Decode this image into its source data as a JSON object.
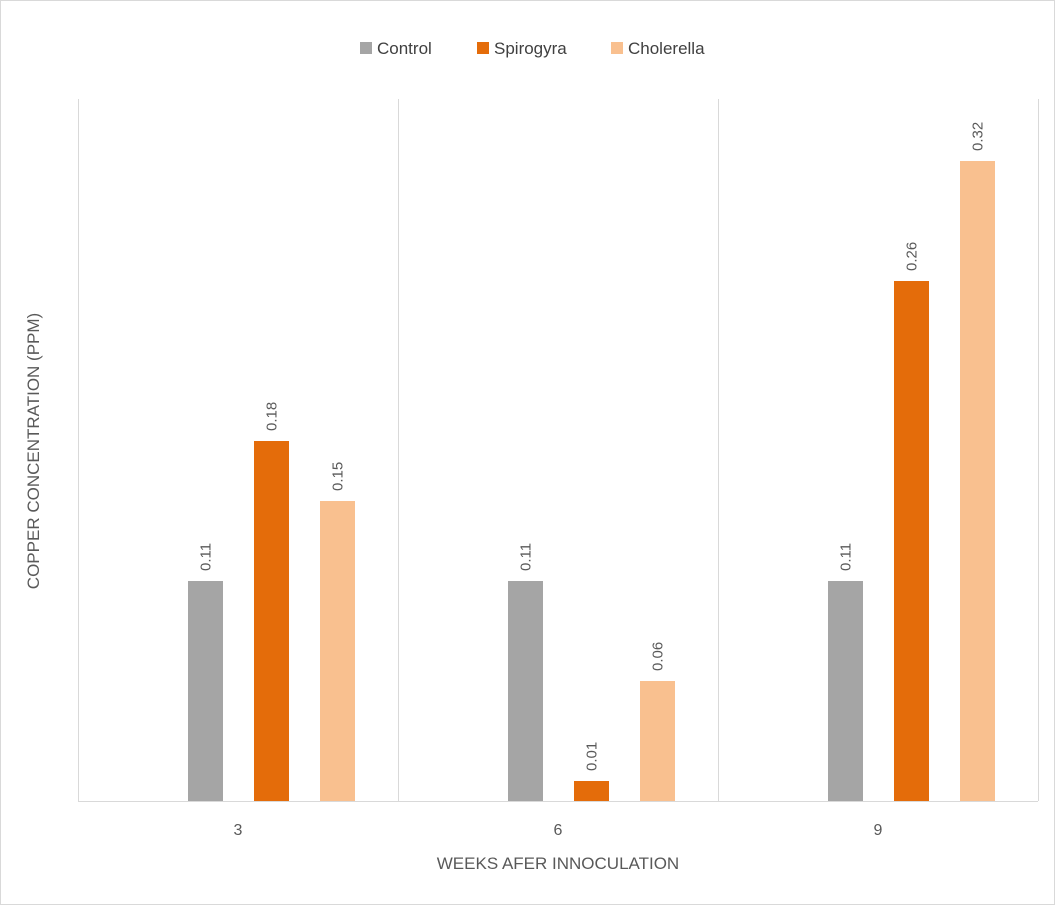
{
  "chart_data": {
    "type": "bar",
    "title": "",
    "xlabel": "WEEKS AFER INNOCULATION",
    "ylabel": "COPPER  CONCENTRATION (PPM)",
    "categories": [
      "3",
      "6",
      "9"
    ],
    "series": [
      {
        "name": "Control",
        "values": [
          0.11,
          0.11,
          0.11
        ],
        "color": "#a5a5a5"
      },
      {
        "name": "Spirogyra",
        "values": [
          0.18,
          0.01,
          0.26
        ],
        "color": "#e46c0a"
      },
      {
        "name": "Cholerella",
        "values": [
          0.15,
          0.06,
          0.32
        ],
        "color": "#f9c08f"
      }
    ],
    "data_labels": [
      [
        "0.11",
        "0.18",
        "0.15"
      ],
      [
        "0.11",
        "0.01",
        "0.06"
      ],
      [
        "0.11",
        "0.26",
        "0.32"
      ]
    ],
    "ylim": [
      0,
      0.32
    ],
    "legend_position": "top",
    "grid": "vertical category separators"
  }
}
